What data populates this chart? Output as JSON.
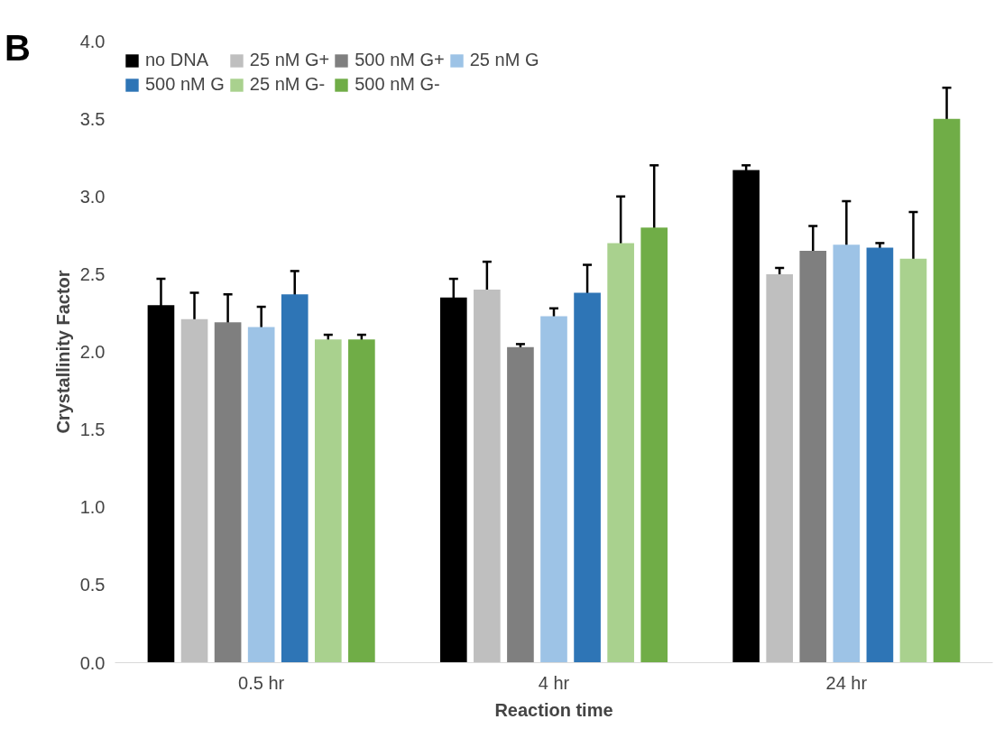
{
  "chart_data": {
    "type": "bar",
    "xlabel": "Reaction time",
    "ylabel": "Crystallinity Factor",
    "annotations": [
      "B"
    ],
    "categories": [
      "0.5 hr",
      "4 hr",
      "24 hr"
    ],
    "ylim": [
      0,
      4
    ],
    "yticks": [
      {
        "value": 0,
        "label": "0.0"
      },
      {
        "value": 0.5,
        "label": "0.5"
      },
      {
        "value": 1,
        "label": "1.0"
      },
      {
        "value": 1.5,
        "label": "1.5"
      },
      {
        "value": 2,
        "label": "2.0"
      },
      {
        "value": 2.5,
        "label": "2.5"
      },
      {
        "value": 3,
        "label": "3.0"
      },
      {
        "value": 3.5,
        "label": "3.5"
      },
      {
        "value": 4,
        "label": "4.0"
      }
    ],
    "grid": false,
    "legend": "top",
    "series": [
      {
        "name": "no DNA",
        "color": "#000000",
        "values": [
          2.3,
          2.35,
          3.17
        ],
        "errors": [
          0.17,
          0.12,
          0.03
        ]
      },
      {
        "name": "25 nM G+",
        "color": "#bfbfbf",
        "values": [
          2.21,
          2.4,
          2.5
        ],
        "errors": [
          0.17,
          0.18,
          0.04
        ]
      },
      {
        "name": "500 nM G+",
        "color": "#7f7f7f",
        "values": [
          2.19,
          2.03,
          2.65
        ],
        "errors": [
          0.18,
          0.02,
          0.16
        ]
      },
      {
        "name": "25 nM G",
        "color": "#9dc3e6",
        "values": [
          2.16,
          2.23,
          2.69
        ],
        "errors": [
          0.13,
          0.05,
          0.28
        ]
      },
      {
        "name": "500 nM G",
        "color": "#2e75b6",
        "values": [
          2.37,
          2.38,
          2.67
        ],
        "errors": [
          0.15,
          0.18,
          0.03
        ]
      },
      {
        "name": "25 nM G-",
        "color": "#a9d18e",
        "values": [
          2.08,
          2.7,
          2.6
        ],
        "errors": [
          0.03,
          0.3,
          0.3
        ]
      },
      {
        "name": "500 nM G-",
        "color": "#70ad47",
        "values": [
          2.08,
          2.8,
          3.5
        ],
        "errors": [
          0.03,
          0.4,
          0.2
        ]
      }
    ]
  }
}
